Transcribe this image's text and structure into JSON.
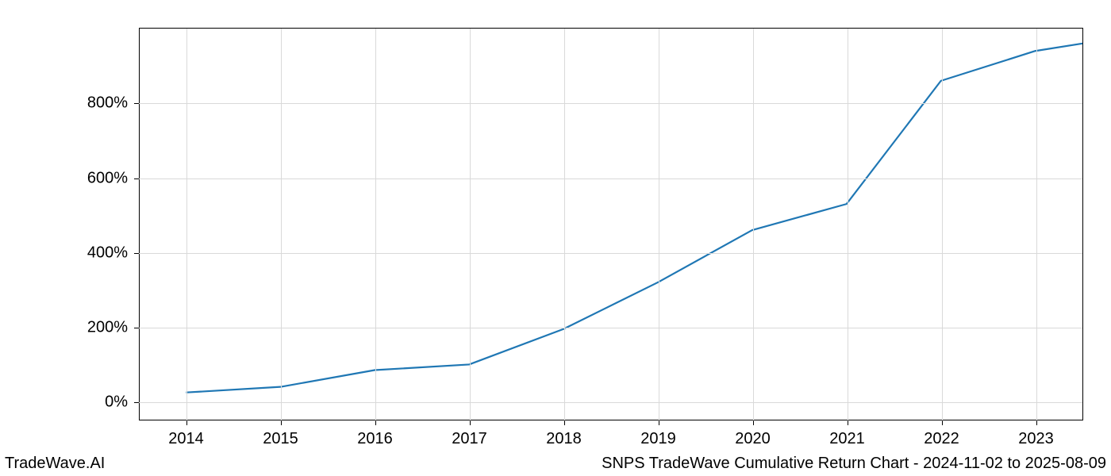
{
  "footer": {
    "left": "TradeWave.AI",
    "right": "SNPS TradeWave Cumulative Return Chart - 2024-11-02 to 2025-08-09"
  },
  "chart": {
    "type": "line",
    "background_color": "#ffffff",
    "grid_color": "#d9d9d9",
    "axis_color": "#000000",
    "line_color": "#1f77b4",
    "line_width": 2.2,
    "tick_fontsize": 20,
    "footer_fontsize": 20,
    "x": {
      "ticks": [
        2014,
        2015,
        2016,
        2017,
        2018,
        2019,
        2020,
        2021,
        2022,
        2023
      ],
      "labels": [
        "2014",
        "2015",
        "2016",
        "2017",
        "2018",
        "2019",
        "2020",
        "2021",
        "2022",
        "2023"
      ],
      "min": 2013.5,
      "max": 2023.5
    },
    "y": {
      "ticks": [
        0,
        200,
        400,
        600,
        800
      ],
      "labels": [
        "0%",
        "200%",
        "400%",
        "600%",
        "800%"
      ],
      "min": -50,
      "max": 1000
    },
    "series": {
      "x": [
        2014,
        2015,
        2016,
        2017,
        2018,
        2019,
        2020,
        2021,
        2022,
        2023,
        2023.5
      ],
      "y": [
        25,
        40,
        85,
        100,
        195,
        320,
        460,
        530,
        860,
        940,
        960
      ]
    }
  }
}
